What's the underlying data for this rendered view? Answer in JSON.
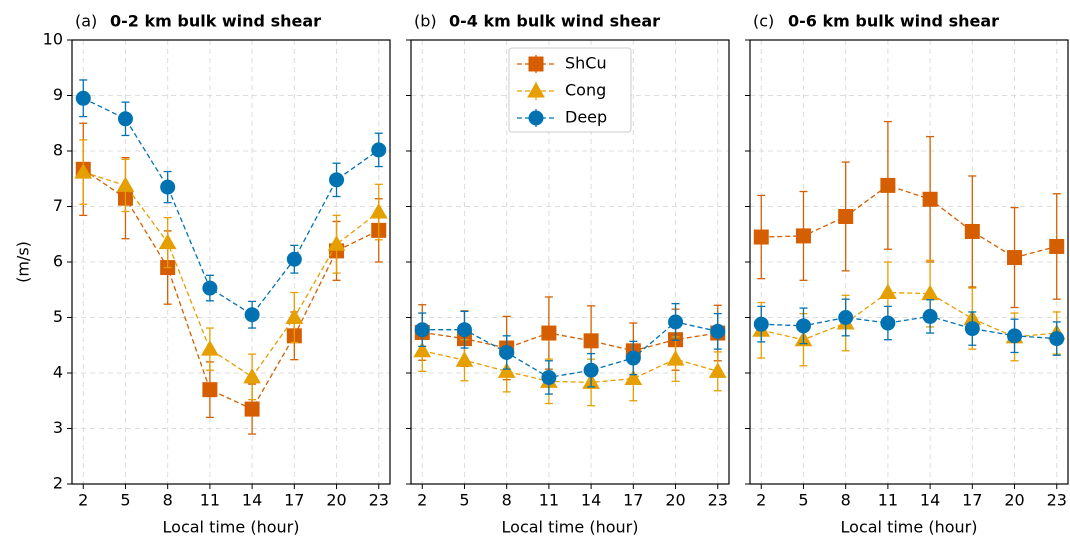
{
  "chart_data": [
    {
      "type": "line",
      "label": "(a)",
      "title": "0-2 km bulk wind shear",
      "xlabel": "Local time (hour)",
      "ylabel": "(m/s)",
      "x": [
        2,
        5,
        8,
        11,
        14,
        17,
        20,
        23
      ],
      "xlim": [
        1.2,
        23.8
      ],
      "xticks": [
        2,
        5,
        8,
        11,
        14,
        17,
        20,
        23
      ],
      "ylim": [
        2,
        10
      ],
      "yticks": [
        2,
        3,
        4,
        5,
        6,
        7,
        8,
        9,
        10
      ],
      "yticklabels": true,
      "grid": true,
      "series": [
        {
          "name": "ShCu",
          "color": "#d55e00",
          "marker": "square",
          "values": [
            7.67,
            7.15,
            5.9,
            3.7,
            3.35,
            4.67,
            6.2,
            6.57
          ],
          "errors": [
            0.83,
            0.73,
            0.66,
            0.5,
            0.45,
            0.43,
            0.53,
            0.57
          ]
        },
        {
          "name": "Cong",
          "color": "#e69f00",
          "marker": "triangle",
          "values": [
            7.62,
            7.38,
            6.35,
            4.43,
            3.93,
            5.0,
            6.32,
            6.9
          ],
          "errors": [
            0.58,
            0.47,
            0.45,
            0.38,
            0.41,
            0.45,
            0.52,
            0.5
          ]
        },
        {
          "name": "Deep",
          "color": "#0072b2",
          "marker": "circle",
          "values": [
            8.95,
            8.58,
            7.35,
            5.53,
            5.05,
            6.05,
            7.48,
            8.02
          ],
          "errors": [
            0.33,
            0.3,
            0.28,
            0.23,
            0.24,
            0.25,
            0.3,
            0.3
          ]
        }
      ]
    },
    {
      "type": "line",
      "label": "(b)",
      "title": "0-4 km bulk wind shear",
      "xlabel": "Local time (hour)",
      "legend": "upper center",
      "x": [
        2,
        5,
        8,
        11,
        14,
        17,
        20,
        23
      ],
      "xlim": [
        1.2,
        23.8
      ],
      "xticks": [
        2,
        5,
        8,
        11,
        14,
        17,
        20,
        23
      ],
      "ylim": [
        2,
        10
      ],
      "yticks": [
        2,
        3,
        4,
        5,
        6,
        7,
        8,
        9,
        10
      ],
      "yticklabels": false,
      "grid": true,
      "series": [
        {
          "name": "ShCu",
          "color": "#d55e00",
          "marker": "square",
          "values": [
            4.73,
            4.62,
            4.45,
            4.72,
            4.58,
            4.4,
            4.6,
            4.72
          ],
          "errors": [
            0.5,
            0.5,
            0.57,
            0.65,
            0.63,
            0.5,
            0.55,
            0.5
          ]
        },
        {
          "name": "Cong",
          "color": "#e69f00",
          "marker": "triangle",
          "values": [
            4.4,
            4.23,
            4.03,
            3.85,
            3.83,
            3.9,
            4.25,
            4.03
          ],
          "errors": [
            0.37,
            0.37,
            0.37,
            0.4,
            0.42,
            0.4,
            0.4,
            0.35
          ]
        },
        {
          "name": "Deep",
          "color": "#0072b2",
          "marker": "circle",
          "values": [
            4.78,
            4.78,
            4.37,
            3.92,
            4.05,
            4.27,
            4.92,
            4.75
          ],
          "errors": [
            0.3,
            0.33,
            0.3,
            0.3,
            0.3,
            0.3,
            0.33,
            0.32
          ]
        }
      ]
    },
    {
      "type": "line",
      "label": "(c)",
      "title": "0-6 km bulk wind shear",
      "xlabel": "Local time (hour)",
      "x": [
        2,
        5,
        8,
        11,
        14,
        17,
        20,
        23
      ],
      "xlim": [
        1.2,
        23.8
      ],
      "xticks": [
        2,
        5,
        8,
        11,
        14,
        17,
        20,
        23
      ],
      "ylim": [
        2,
        10
      ],
      "yticks": [
        2,
        3,
        4,
        5,
        6,
        7,
        8,
        9,
        10
      ],
      "yticklabels": false,
      "grid": true,
      "series": [
        {
          "name": "ShCu",
          "color": "#d55e00",
          "marker": "square",
          "values": [
            6.45,
            6.47,
            6.82,
            7.38,
            7.13,
            6.55,
            6.08,
            6.28
          ],
          "errors": [
            0.75,
            0.8,
            0.98,
            1.15,
            1.13,
            1.0,
            0.9,
            0.95
          ]
        },
        {
          "name": "Cong",
          "color": "#e69f00",
          "marker": "triangle",
          "values": [
            4.77,
            4.6,
            4.9,
            5.45,
            5.43,
            4.98,
            4.65,
            4.72
          ],
          "errors": [
            0.5,
            0.47,
            0.5,
            0.55,
            0.6,
            0.55,
            0.43,
            0.38
          ]
        },
        {
          "name": "Deep",
          "color": "#0072b2",
          "marker": "circle",
          "values": [
            4.88,
            4.85,
            5.0,
            4.9,
            5.02,
            4.8,
            4.67,
            4.62
          ],
          "errors": [
            0.32,
            0.32,
            0.33,
            0.3,
            0.3,
            0.3,
            0.3,
            0.3
          ]
        }
      ]
    }
  ]
}
